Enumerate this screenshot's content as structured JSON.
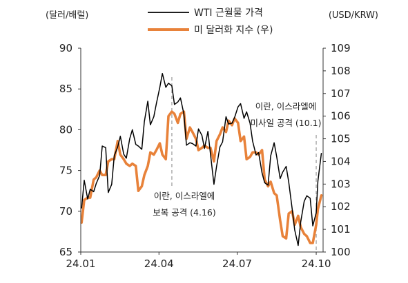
{
  "chart_data": {
    "type": "line",
    "left_axis": {
      "unit_label": "(달러/배럴)",
      "ylim": [
        65,
        90
      ],
      "ticks": [
        65,
        70,
        75,
        80,
        85,
        90
      ]
    },
    "right_axis": {
      "unit_label": "(USD/KRW)",
      "ylim": [
        100,
        109
      ],
      "ticks": [
        100,
        101,
        102,
        103,
        104,
        105,
        106,
        107,
        108,
        109
      ]
    },
    "x_axis": {
      "tick_labels": [
        "24.01",
        "24.04",
        "24.07",
        "24.10"
      ]
    },
    "legend_position": "top-center",
    "series": [
      {
        "name": "WTI 근월물 가격",
        "axis": "left",
        "color": "#000000",
        "points": [
          [
            "2024-01-02",
            70.4
          ],
          [
            "2024-01-05",
            73.8
          ],
          [
            "2024-01-09",
            71.5
          ],
          [
            "2024-01-12",
            72.7
          ],
          [
            "2024-01-16",
            72.4
          ],
          [
            "2024-01-19",
            73.4
          ],
          [
            "2024-01-23",
            74.4
          ],
          [
            "2024-01-26",
            78.0
          ],
          [
            "2024-01-30",
            77.8
          ],
          [
            "2024-02-02",
            72.3
          ],
          [
            "2024-02-06",
            73.3
          ],
          [
            "2024-02-09",
            76.8
          ],
          [
            "2024-02-13",
            77.9
          ],
          [
            "2024-02-16",
            79.2
          ],
          [
            "2024-02-20",
            77.0
          ],
          [
            "2024-02-23",
            76.5
          ],
          [
            "2024-02-27",
            78.9
          ],
          [
            "2024-03-01",
            80.0
          ],
          [
            "2024-03-05",
            78.2
          ],
          [
            "2024-03-08",
            78.0
          ],
          [
            "2024-03-12",
            77.6
          ],
          [
            "2024-03-15",
            81.0
          ],
          [
            "2024-03-19",
            83.5
          ],
          [
            "2024-03-22",
            80.6
          ],
          [
            "2024-03-26",
            81.6
          ],
          [
            "2024-03-29",
            83.2
          ],
          [
            "2024-04-02",
            85.2
          ],
          [
            "2024-04-05",
            86.9
          ],
          [
            "2024-04-09",
            85.2
          ],
          [
            "2024-04-12",
            85.7
          ],
          [
            "2024-04-16",
            85.4
          ],
          [
            "2024-04-19",
            83.1
          ],
          [
            "2024-04-23",
            83.4
          ],
          [
            "2024-04-26",
            83.9
          ],
          [
            "2024-04-30",
            81.9
          ],
          [
            "2024-05-03",
            78.1
          ],
          [
            "2024-05-07",
            78.4
          ],
          [
            "2024-05-10",
            78.3
          ],
          [
            "2024-05-14",
            78.0
          ],
          [
            "2024-05-17",
            80.1
          ],
          [
            "2024-05-21",
            79.3
          ],
          [
            "2024-05-24",
            77.7
          ],
          [
            "2024-05-28",
            79.8
          ],
          [
            "2024-05-31",
            77.0
          ],
          [
            "2024-06-04",
            73.3
          ],
          [
            "2024-06-07",
            75.5
          ],
          [
            "2024-06-11",
            77.9
          ],
          [
            "2024-06-14",
            78.5
          ],
          [
            "2024-06-18",
            81.6
          ],
          [
            "2024-06-21",
            80.7
          ],
          [
            "2024-06-25",
            80.8
          ],
          [
            "2024-06-28",
            81.5
          ],
          [
            "2024-07-02",
            82.8
          ],
          [
            "2024-07-05",
            83.2
          ],
          [
            "2024-07-09",
            81.4
          ],
          [
            "2024-07-12",
            82.2
          ],
          [
            "2024-07-16",
            80.8
          ],
          [
            "2024-07-19",
            78.6
          ],
          [
            "2024-07-23",
            76.9
          ],
          [
            "2024-07-26",
            77.2
          ],
          [
            "2024-07-30",
            74.7
          ],
          [
            "2024-08-02",
            73.5
          ],
          [
            "2024-08-06",
            73.2
          ],
          [
            "2024-08-09",
            76.8
          ],
          [
            "2024-08-13",
            78.4
          ],
          [
            "2024-08-16",
            76.7
          ],
          [
            "2024-08-20",
            74.0
          ],
          [
            "2024-08-23",
            74.8
          ],
          [
            "2024-08-27",
            75.5
          ],
          [
            "2024-08-30",
            73.6
          ],
          [
            "2024-09-03",
            70.3
          ],
          [
            "2024-09-06",
            67.7
          ],
          [
            "2024-09-10",
            65.8
          ],
          [
            "2024-09-13",
            68.7
          ],
          [
            "2024-09-17",
            71.2
          ],
          [
            "2024-09-20",
            71.9
          ],
          [
            "2024-09-24",
            71.6
          ],
          [
            "2024-09-27",
            68.2
          ],
          [
            "2024-10-01",
            69.8
          ],
          [
            "2024-10-03",
            73.7
          ],
          [
            "2024-10-07",
            77.1
          ]
        ]
      },
      {
        "name": "미 달러화 지수 (우)",
        "axis": "right",
        "color": "#e8823a",
        "points": [
          [
            "2024-01-02",
            101.3
          ],
          [
            "2024-01-05",
            102.3
          ],
          [
            "2024-01-09",
            102.4
          ],
          [
            "2024-01-12",
            102.4
          ],
          [
            "2024-01-16",
            103.2
          ],
          [
            "2024-01-19",
            103.3
          ],
          [
            "2024-01-23",
            103.6
          ],
          [
            "2024-01-26",
            103.4
          ],
          [
            "2024-01-30",
            103.4
          ],
          [
            "2024-02-02",
            104.0
          ],
          [
            "2024-02-06",
            104.1
          ],
          [
            "2024-02-09",
            104.1
          ],
          [
            "2024-02-13",
            104.9
          ],
          [
            "2024-02-16",
            104.3
          ],
          [
            "2024-02-20",
            104.1
          ],
          [
            "2024-02-23",
            103.9
          ],
          [
            "2024-02-27",
            103.8
          ],
          [
            "2024-03-01",
            103.9
          ],
          [
            "2024-03-05",
            103.8
          ],
          [
            "2024-03-08",
            102.7
          ],
          [
            "2024-03-12",
            102.9
          ],
          [
            "2024-03-15",
            103.4
          ],
          [
            "2024-03-19",
            103.8
          ],
          [
            "2024-03-22",
            104.4
          ],
          [
            "2024-03-26",
            104.3
          ],
          [
            "2024-03-29",
            104.5
          ],
          [
            "2024-04-02",
            104.8
          ],
          [
            "2024-04-05",
            104.3
          ],
          [
            "2024-04-09",
            104.1
          ],
          [
            "2024-04-12",
            106.0
          ],
          [
            "2024-04-16",
            106.2
          ],
          [
            "2024-04-19",
            106.1
          ],
          [
            "2024-04-23",
            105.7
          ],
          [
            "2024-04-26",
            106.1
          ],
          [
            "2024-04-30",
            106.2
          ],
          [
            "2024-05-03",
            105.0
          ],
          [
            "2024-05-07",
            105.5
          ],
          [
            "2024-05-10",
            105.3
          ],
          [
            "2024-05-14",
            105.0
          ],
          [
            "2024-05-17",
            104.5
          ],
          [
            "2024-05-21",
            104.6
          ],
          [
            "2024-05-24",
            104.7
          ],
          [
            "2024-05-28",
            104.6
          ],
          [
            "2024-05-31",
            104.6
          ],
          [
            "2024-06-04",
            104.0
          ],
          [
            "2024-06-07",
            104.9
          ],
          [
            "2024-06-11",
            105.2
          ],
          [
            "2024-06-14",
            105.5
          ],
          [
            "2024-06-18",
            105.3
          ],
          [
            "2024-06-21",
            105.8
          ],
          [
            "2024-06-25",
            105.6
          ],
          [
            "2024-06-28",
            105.9
          ],
          [
            "2024-07-02",
            105.7
          ],
          [
            "2024-07-05",
            104.9
          ],
          [
            "2024-07-09",
            105.1
          ],
          [
            "2024-07-12",
            104.1
          ],
          [
            "2024-07-16",
            104.2
          ],
          [
            "2024-07-19",
            104.4
          ],
          [
            "2024-07-23",
            104.4
          ],
          [
            "2024-07-26",
            104.3
          ],
          [
            "2024-07-30",
            104.5
          ],
          [
            "2024-08-02",
            103.2
          ],
          [
            "2024-08-06",
            102.9
          ],
          [
            "2024-08-09",
            103.1
          ],
          [
            "2024-08-13",
            102.6
          ],
          [
            "2024-08-16",
            102.5
          ],
          [
            "2024-08-20",
            101.4
          ],
          [
            "2024-08-23",
            100.7
          ],
          [
            "2024-08-27",
            100.6
          ],
          [
            "2024-08-30",
            101.7
          ],
          [
            "2024-09-03",
            101.8
          ],
          [
            "2024-09-06",
            101.2
          ],
          [
            "2024-09-10",
            101.6
          ],
          [
            "2024-09-13",
            101.1
          ],
          [
            "2024-09-17",
            100.8
          ],
          [
            "2024-09-20",
            100.7
          ],
          [
            "2024-09-24",
            100.4
          ],
          [
            "2024-09-27",
            100.4
          ],
          [
            "2024-10-01",
            101.2
          ],
          [
            "2024-10-03",
            101.9
          ],
          [
            "2024-10-07",
            102.5
          ]
        ]
      }
    ],
    "annotations": [
      {
        "date": "2024-04-16",
        "lines": [
          "이란, 이스라엘에",
          "보복 공격 (4.16)"
        ]
      },
      {
        "date": "2024-10-01",
        "lines": [
          "이란, 이스라엘에",
          "미사일 공격 (10.1)"
        ]
      }
    ]
  }
}
